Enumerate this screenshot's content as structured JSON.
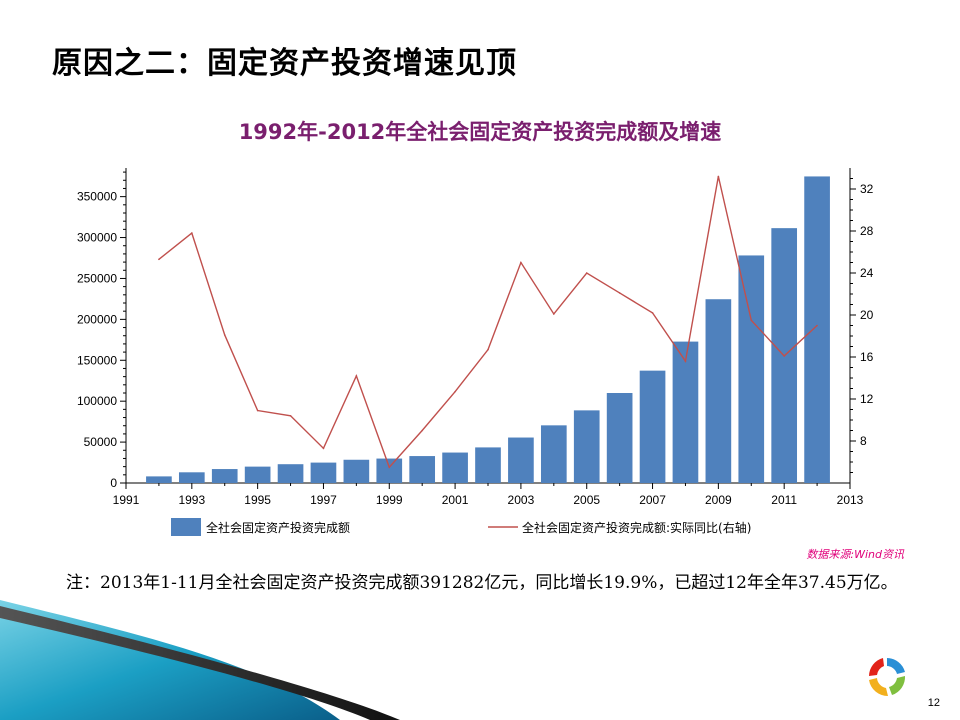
{
  "slide": {
    "title": "原因之二：固定资产投资增速见顶",
    "source": "数据来源:Wind资讯",
    "note": "注：2013年1-11月全社会固定资产投资完成额391282亿元，同比增长19.9%，已超过12年全年37.45万亿。",
    "page_number": "12"
  },
  "colors": {
    "bar": "#4f81bd",
    "line": "#c0504d",
    "title": "#7a1f6e",
    "source": "#e0007a"
  },
  "chart_data": {
    "type": "bar",
    "title": "1992年-2012年全社会固定资产投资完成额及增速",
    "x_ticks": [
      "1991",
      "1993",
      "1995",
      "1997",
      "1999",
      "2001",
      "2003",
      "2005",
      "2007",
      "2009",
      "2011",
      "2013"
    ],
    "x_range": [
      1991,
      2013
    ],
    "y_left_ticks": [
      0,
      50000,
      100000,
      150000,
      200000,
      250000,
      300000,
      350000
    ],
    "y_left_range": [
      0,
      385000
    ],
    "y_right_ticks": [
      8,
      12,
      16,
      20,
      24,
      28,
      32
    ],
    "y_right_range": [
      4,
      34
    ],
    "legend_position": "bottom",
    "series": [
      {
        "name": "全社会固定资产投资完成额",
        "type": "bar",
        "axis": "left",
        "x": [
          1992,
          1993,
          1994,
          1995,
          1996,
          1997,
          1998,
          1999,
          2000,
          2001,
          2002,
          2003,
          2004,
          2005,
          2006,
          2007,
          2008,
          2009,
          2010,
          2011,
          2012
        ],
        "values": [
          8080,
          13072,
          17042,
          20019,
          22974,
          24941,
          28406,
          29855,
          32918,
          37214,
          43500,
          55567,
          70477,
          88774,
          109998,
          137324,
          172828,
          224599,
          278122,
          311485,
          374695
        ]
      },
      {
        "name": "全社会固定资产投资完成额:实际同比(右轴)",
        "type": "line",
        "axis": "right",
        "x": [
          1992,
          1993,
          1994,
          1995,
          1996,
          1997,
          1998,
          1999,
          2000,
          2001,
          2002,
          2003,
          2004,
          2005,
          2006,
          2007,
          2008,
          2009,
          2010,
          2011,
          2012
        ],
        "values": [
          25.3,
          27.8,
          18.1,
          10.9,
          10.4,
          7.3,
          14.2,
          5.5,
          9.0,
          12.7,
          16.7,
          25.0,
          20.1,
          24.0,
          22.1,
          20.2,
          15.6,
          33.2,
          19.5,
          16.1,
          19.0
        ]
      }
    ]
  }
}
